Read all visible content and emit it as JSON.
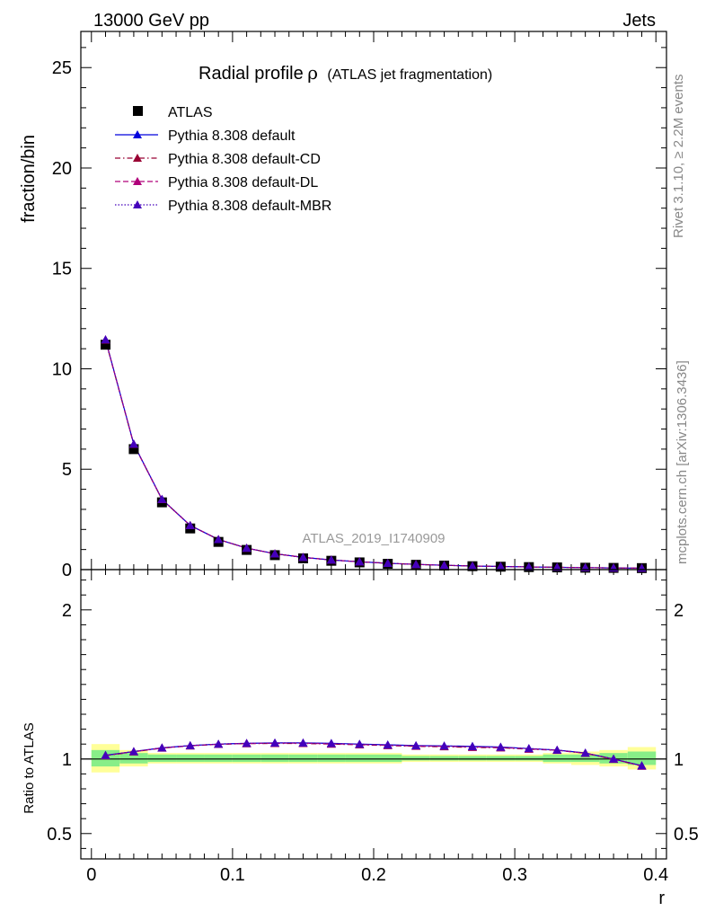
{
  "header": {
    "left": "13000 GeV pp",
    "right": "Jets"
  },
  "side_text": {
    "rivet": "Rivet 3.1.10, ≥ 2.2M events",
    "mcplots": "mcplots.cern.ch [arXiv:1306.3436]"
  },
  "watermark": "ATLAS_2019_I1740909",
  "colors": {
    "atlas": "#000000",
    "default": "#0000dd",
    "cd": "#990033",
    "dl": "#b0007a",
    "mbr": "#4400bb",
    "band_outer": "#ffff99",
    "band_inner": "#88ee88"
  },
  "chart_data": [
    {
      "type": "scatter",
      "panel": "main",
      "title": "Radial profile ρ (ATLAS jet fragmentation)",
      "title_main": "Radial profile",
      "title_rho": "ρ",
      "title_sub": "(ATLAS jet fragmentation)",
      "ylabel": "fraction/bin",
      "xlim": [
        -0.0075,
        0.4075
      ],
      "ylim": [
        0,
        26.8
      ],
      "yticks": [
        0,
        5,
        10,
        15,
        20,
        25
      ],
      "ytick_labels": [
        "0",
        "5",
        "10",
        "15",
        "20",
        "25"
      ],
      "legend_position": "top-left",
      "x": [
        0.01,
        0.03,
        0.05,
        0.07,
        0.09,
        0.11,
        0.13,
        0.15,
        0.17,
        0.19,
        0.21,
        0.23,
        0.25,
        0.27,
        0.29,
        0.31,
        0.33,
        0.35,
        0.37,
        0.39
      ],
      "series": [
        {
          "name": "ATLAS",
          "color": "#000000",
          "marker": "square",
          "values": [
            11.2,
            6.0,
            3.35,
            2.05,
            1.38,
            0.98,
            0.72,
            0.56,
            0.44,
            0.36,
            0.29,
            0.24,
            0.2,
            0.17,
            0.145,
            0.125,
            0.11,
            0.095,
            0.085,
            0.075
          ]
        },
        {
          "name": "Pythia 8.308 default",
          "color": "#0000dd",
          "marker": "triangle",
          "linestyle": "solid",
          "values": [
            11.45,
            6.25,
            3.5,
            2.2,
            1.5,
            1.07,
            0.79,
            0.61,
            0.48,
            0.39,
            0.315,
            0.26,
            0.215,
            0.18,
            0.155,
            0.133,
            0.115,
            0.098,
            0.084,
            0.071
          ]
        },
        {
          "name": "Pythia 8.308 default-CD",
          "color": "#990033",
          "marker": "triangle",
          "linestyle": "dashdot",
          "values": [
            11.43,
            6.24,
            3.49,
            2.2,
            1.5,
            1.07,
            0.79,
            0.61,
            0.48,
            0.39,
            0.315,
            0.26,
            0.215,
            0.18,
            0.155,
            0.133,
            0.115,
            0.098,
            0.084,
            0.071
          ]
        },
        {
          "name": "Pythia 8.308 default-DL",
          "color": "#b0007a",
          "marker": "triangle",
          "linestyle": "dashed",
          "values": [
            11.44,
            6.24,
            3.49,
            2.2,
            1.5,
            1.07,
            0.79,
            0.61,
            0.48,
            0.39,
            0.315,
            0.26,
            0.215,
            0.18,
            0.155,
            0.133,
            0.115,
            0.098,
            0.084,
            0.071
          ]
        },
        {
          "name": "Pythia 8.308 default-MBR",
          "color": "#4400bb",
          "marker": "triangle",
          "linestyle": "dotted",
          "values": [
            11.45,
            6.25,
            3.5,
            2.2,
            1.5,
            1.07,
            0.79,
            0.61,
            0.48,
            0.39,
            0.315,
            0.26,
            0.215,
            0.18,
            0.155,
            0.133,
            0.115,
            0.098,
            0.084,
            0.071
          ]
        }
      ]
    },
    {
      "type": "scatter",
      "panel": "ratio",
      "xlabel": "r",
      "ylabel": "Ratio to ATLAS",
      "xlim": [
        -0.0075,
        0.4075
      ],
      "ylim": [
        0.33,
        2.27
      ],
      "xticks": [
        0,
        0.1,
        0.2,
        0.3,
        0.4
      ],
      "xtick_labels": [
        "0",
        "0.1",
        "0.2",
        "0.3",
        "0.4"
      ],
      "yticks": [
        0.5,
        1,
        2
      ],
      "ytick_labels": [
        "0.5",
        "1",
        "2"
      ],
      "x": [
        0.01,
        0.03,
        0.05,
        0.07,
        0.09,
        0.11,
        0.13,
        0.15,
        0.17,
        0.19,
        0.21,
        0.23,
        0.25,
        0.27,
        0.29,
        0.31,
        0.33,
        0.35,
        0.37,
        0.39
      ],
      "bins": [
        [
          0.0,
          0.02
        ],
        [
          0.02,
          0.04
        ],
        [
          0.04,
          0.06
        ],
        [
          0.06,
          0.08
        ],
        [
          0.08,
          0.1
        ],
        [
          0.1,
          0.12
        ],
        [
          0.12,
          0.14
        ],
        [
          0.14,
          0.16
        ],
        [
          0.16,
          0.18
        ],
        [
          0.18,
          0.2
        ],
        [
          0.2,
          0.22
        ],
        [
          0.22,
          0.24
        ],
        [
          0.24,
          0.26
        ],
        [
          0.26,
          0.28
        ],
        [
          0.28,
          0.3
        ],
        [
          0.3,
          0.32
        ],
        [
          0.32,
          0.34
        ],
        [
          0.34,
          0.36
        ],
        [
          0.36,
          0.38
        ],
        [
          0.38,
          0.4
        ]
      ],
      "band_outer": [
        [
          0.91,
          1.1
        ],
        [
          0.95,
          1.06
        ],
        [
          0.97,
          1.04
        ],
        [
          0.97,
          1.04
        ],
        [
          0.97,
          1.04
        ],
        [
          0.97,
          1.04
        ],
        [
          0.97,
          1.04
        ],
        [
          0.97,
          1.04
        ],
        [
          0.97,
          1.04
        ],
        [
          0.97,
          1.04
        ],
        [
          0.97,
          1.04
        ],
        [
          0.98,
          1.03
        ],
        [
          0.98,
          1.03
        ],
        [
          0.98,
          1.03
        ],
        [
          0.98,
          1.03
        ],
        [
          0.98,
          1.03
        ],
        [
          0.97,
          1.04
        ],
        [
          0.96,
          1.05
        ],
        [
          0.95,
          1.06
        ],
        [
          0.93,
          1.08
        ]
      ],
      "band_inner": [
        [
          0.95,
          1.06
        ],
        [
          0.97,
          1.04
        ],
        [
          0.98,
          1.03
        ],
        [
          0.98,
          1.03
        ],
        [
          0.98,
          1.03
        ],
        [
          0.98,
          1.03
        ],
        [
          0.98,
          1.03
        ],
        [
          0.98,
          1.03
        ],
        [
          0.98,
          1.03
        ],
        [
          0.98,
          1.03
        ],
        [
          0.98,
          1.03
        ],
        [
          0.99,
          1.02
        ],
        [
          0.99,
          1.02
        ],
        [
          0.99,
          1.02
        ],
        [
          0.99,
          1.02
        ],
        [
          0.99,
          1.02
        ],
        [
          0.98,
          1.03
        ],
        [
          0.98,
          1.03
        ],
        [
          0.97,
          1.04
        ],
        [
          0.96,
          1.05
        ]
      ],
      "series": [
        {
          "name": "Pythia 8.308 default",
          "color": "#0000dd",
          "linestyle": "solid",
          "values": [
            1.025,
            1.05,
            1.075,
            1.09,
            1.1,
            1.105,
            1.108,
            1.108,
            1.105,
            1.1,
            1.095,
            1.09,
            1.088,
            1.085,
            1.08,
            1.07,
            1.06,
            1.04,
            1.0,
            0.955
          ]
        },
        {
          "name": "Pythia 8.308 default-CD",
          "color": "#990033",
          "linestyle": "dashdot",
          "values": [
            1.022,
            1.048,
            1.073,
            1.088,
            1.098,
            1.103,
            1.104,
            1.104,
            1.1,
            1.095,
            1.09,
            1.085,
            1.082,
            1.078,
            1.075,
            1.066,
            1.058,
            1.038,
            0.998,
            0.952
          ]
        },
        {
          "name": "Pythia 8.308 default-DL",
          "color": "#b0007a",
          "linestyle": "dashed",
          "values": [
            1.023,
            1.049,
            1.074,
            1.089,
            1.099,
            1.104,
            1.106,
            1.106,
            1.102,
            1.097,
            1.092,
            1.087,
            1.085,
            1.081,
            1.077,
            1.068,
            1.059,
            1.039,
            0.999,
            0.953
          ]
        },
        {
          "name": "Pythia 8.308 default-MBR",
          "color": "#4400bb",
          "linestyle": "dotted",
          "values": [
            1.024,
            1.05,
            1.075,
            1.09,
            1.1,
            1.105,
            1.107,
            1.107,
            1.104,
            1.099,
            1.094,
            1.089,
            1.087,
            1.083,
            1.079,
            1.07,
            1.06,
            1.04,
            1.0,
            0.955
          ]
        }
      ]
    }
  ]
}
